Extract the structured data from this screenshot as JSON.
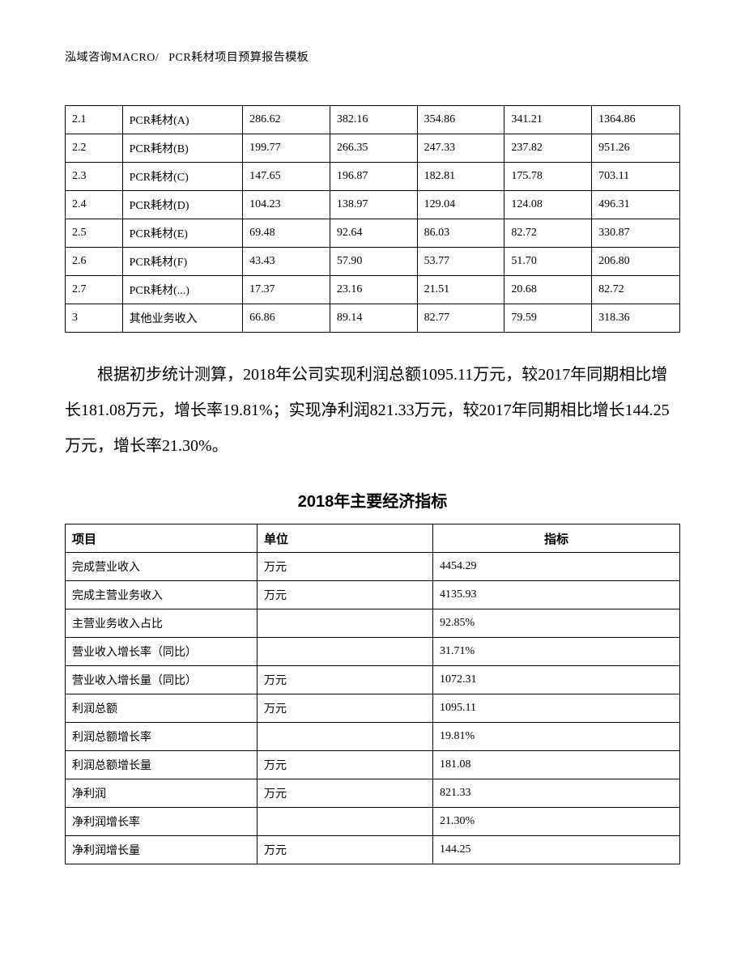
{
  "header": {
    "left": "泓域咨询MACRO/",
    "right": "PCR耗材项目预算报告模板"
  },
  "table1": {
    "rows": [
      [
        "2.1",
        "PCR耗材(A)",
        "286.62",
        "382.16",
        "354.86",
        "341.21",
        "1364.86"
      ],
      [
        "2.2",
        "PCR耗材(B)",
        "199.77",
        "266.35",
        "247.33",
        "237.82",
        "951.26"
      ],
      [
        "2.3",
        "PCR耗材(C)",
        "147.65",
        "196.87",
        "182.81",
        "175.78",
        "703.11"
      ],
      [
        "2.4",
        "PCR耗材(D)",
        "104.23",
        "138.97",
        "129.04",
        "124.08",
        "496.31"
      ],
      [
        "2.5",
        "PCR耗材(E)",
        "69.48",
        "92.64",
        "86.03",
        "82.72",
        "330.87"
      ],
      [
        "2.6",
        "PCR耗材(F)",
        "43.43",
        "57.90",
        "53.77",
        "51.70",
        "206.80"
      ],
      [
        "2.7",
        "PCR耗材(...)",
        "17.37",
        "23.16",
        "21.51",
        "20.68",
        "82.72"
      ],
      [
        "3",
        "其他业务收入",
        "66.86",
        "89.14",
        "82.77",
        "79.59",
        "318.36"
      ]
    ]
  },
  "paragraph": "根据初步统计测算，2018年公司实现利润总额1095.11万元，较2017年同期相比增长181.08万元，增长率19.81%；实现净利润821.33万元，较2017年同期相比增长144.25万元，增长率21.30%。",
  "section_title": "2018年主要经济指标",
  "table2": {
    "headers": [
      "项目",
      "单位",
      "指标"
    ],
    "rows": [
      [
        "完成营业收入",
        "万元",
        "4454.29"
      ],
      [
        "完成主营业务收入",
        "万元",
        "4135.93"
      ],
      [
        "主营业务收入占比",
        "",
        "92.85%"
      ],
      [
        "营业收入增长率（同比）",
        "",
        "31.71%"
      ],
      [
        "营业收入增长量（同比）",
        "万元",
        "1072.31"
      ],
      [
        "利润总额",
        "万元",
        "1095.11"
      ],
      [
        "利润总额增长率",
        "",
        "19.81%"
      ],
      [
        "利润总额增长量",
        "万元",
        "181.08"
      ],
      [
        "净利润",
        "万元",
        "821.33"
      ],
      [
        "净利润增长率",
        "",
        "21.30%"
      ],
      [
        "净利润增长量",
        "万元",
        "144.25"
      ]
    ]
  }
}
